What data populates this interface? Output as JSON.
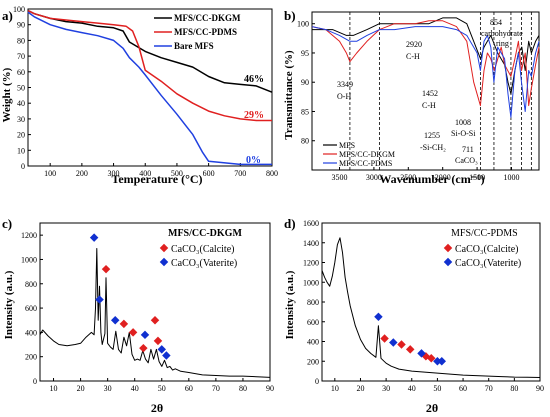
{
  "chart_data": [
    {
      "panel": "a)",
      "type": "line",
      "xlabel": "Temperature (°C)",
      "ylabel": "Weight (%)",
      "xlim": [
        30,
        800
      ],
      "ylim": [
        0,
        100
      ],
      "xticks": [
        100,
        200,
        300,
        400,
        500,
        600,
        700,
        800
      ],
      "yticks": [
        0,
        10,
        20,
        30,
        40,
        50,
        60,
        70,
        80,
        90,
        100
      ],
      "legend": [
        "MFS/CC-DKGM",
        "MFS/CC-PDMS",
        "Bare MFS"
      ],
      "annotations": [
        "46%",
        "29%",
        "0%"
      ],
      "series": [
        {
          "name": "MFS/CC-DKGM",
          "color": "#000000",
          "x": [
            30,
            50,
            100,
            150,
            200,
            250,
            300,
            330,
            350,
            400,
            450,
            500,
            550,
            600,
            650,
            700,
            750,
            800
          ],
          "y": [
            99,
            97,
            94,
            92,
            91,
            89,
            88,
            86,
            79,
            73,
            69,
            66,
            63,
            57,
            53,
            52,
            51,
            47
          ]
        },
        {
          "name": "MFS/CC-PDMS",
          "color": "#e02020",
          "x": [
            30,
            50,
            100,
            150,
            200,
            250,
            300,
            340,
            360,
            380,
            400,
            450,
            500,
            550,
            600,
            650,
            700,
            750,
            800
          ],
          "y": [
            99,
            97,
            94,
            93,
            92,
            91,
            90,
            89,
            86,
            76,
            61,
            54,
            46,
            40,
            35,
            32,
            30,
            29,
            29
          ]
        },
        {
          "name": "Bare MFS",
          "color": "#2040e0",
          "x": [
            30,
            50,
            100,
            150,
            200,
            250,
            300,
            330,
            350,
            380,
            400,
            450,
            500,
            550,
            580,
            600,
            700,
            800
          ],
          "y": [
            98,
            95,
            90,
            87,
            85,
            83,
            80,
            75,
            69,
            63,
            58,
            45,
            33,
            20,
            9,
            3,
            1,
            1
          ]
        }
      ]
    },
    {
      "panel": "b)",
      "type": "line",
      "xlabel": "Wavenumber (cm⁻¹)",
      "ylabel": "Transmittance (%)",
      "xlim": [
        3900,
        600
      ],
      "ylim": [
        75,
        102
      ],
      "xticks": [
        3500,
        3000,
        2500,
        2000,
        1500,
        1000
      ],
      "yticks": [
        80,
        85,
        90,
        95,
        100
      ],
      "legend": [
        "MFS",
        "MFS/CC-DKGM",
        "MFS/CC-PDMS"
      ],
      "annotations": [
        "3349 O-H",
        "2920 C-H",
        "1452 C-H",
        "1255 -Si-CH₃",
        "1008 Si-O-Si",
        "854 carbohydrate ring",
        "711 CaCO₃"
      ],
      "reference_lines": [
        3349,
        2920,
        1452,
        1255,
        1008,
        854,
        711
      ],
      "series": [
        {
          "name": "MFS",
          "color": "#000000",
          "x": [
            3900,
            3600,
            3400,
            3300,
            3100,
            2920,
            2700,
            2400,
            2200,
            2000,
            1800,
            1650,
            1550,
            1450,
            1400,
            1300,
            1200,
            1100,
            1050,
            1008,
            950,
            900,
            850,
            800,
            750,
            711,
            650,
            600
          ],
          "y": [
            99,
            99,
            98,
            98,
            99,
            100,
            100,
            100,
            100,
            101,
            101,
            100,
            97,
            94,
            96,
            98,
            95,
            93,
            90,
            88,
            92,
            95,
            96,
            92,
            97,
            95,
            97,
            98
          ]
        },
        {
          "name": "MFS/CC-DKGM",
          "color": "#e02020",
          "x": [
            3900,
            3700,
            3500,
            3400,
            3349,
            3250,
            3100,
            2920,
            2700,
            2400,
            2200,
            2000,
            1800,
            1650,
            1550,
            1452,
            1400,
            1350,
            1300,
            1250,
            1150,
            1100,
            1008,
            950,
            900,
            854,
            800,
            750,
            711,
            650,
            600
          ],
          "y": [
            99.5,
            99,
            97,
            95,
            93.5,
            95,
            97,
            99,
            100,
            100,
            100.5,
            100.5,
            99.5,
            97,
            90,
            86,
            92,
            95,
            94,
            92,
            96,
            93,
            91,
            94,
            97,
            92,
            95,
            86,
            89,
            93,
            96
          ]
        },
        {
          "name": "MFS/CC-PDMS",
          "color": "#2040e0",
          "x": [
            3900,
            3700,
            3500,
            3349,
            3250,
            3100,
            2920,
            2700,
            2400,
            2200,
            2000,
            1800,
            1650,
            1500,
            1452,
            1400,
            1350,
            1300,
            1255,
            1200,
            1100,
            1050,
            1008,
            950,
            900,
            854,
            800,
            750,
            711,
            650,
            600
          ],
          "y": [
            99.5,
            99,
            98,
            97,
            97,
            98,
            99,
            99,
            99.5,
            99.5,
            99.5,
            99,
            98,
            95,
            92,
            97,
            98,
            96,
            90,
            96,
            94,
            88,
            84,
            92,
            95,
            90,
            85,
            92,
            91,
            95,
            97
          ]
        }
      ]
    },
    {
      "panel": "c)",
      "type": "line",
      "title": "MFS/CC-DKGM",
      "xlabel": "2θ",
      "ylabel": "Intensity (a.u.)",
      "xlim": [
        5,
        90
      ],
      "ylim": [
        0,
        1300
      ],
      "xticks": [
        10,
        20,
        30,
        40,
        50,
        60,
        70,
        80,
        90
      ],
      "yticks": [
        0,
        200,
        400,
        600,
        800,
        1000,
        1200
      ],
      "legend": [
        "CaCO₃(Calcite)",
        "CaCO₃(Vaterite)"
      ],
      "color": "#000000",
      "x": [
        5,
        6,
        8,
        10,
        12,
        15,
        18,
        20,
        22,
        24,
        25,
        25.5,
        26,
        26.5,
        27,
        27.5,
        28,
        29,
        29.4,
        30,
        31,
        32,
        33,
        34,
        35,
        36,
        37,
        38,
        39,
        40,
        41,
        42,
        43,
        44,
        45,
        46,
        47,
        48,
        49,
        50,
        51,
        52,
        53,
        54,
        55,
        57,
        60,
        65,
        70,
        75,
        80,
        85,
        90
      ],
      "y": [
        380,
        420,
        370,
        330,
        300,
        290,
        300,
        310,
        360,
        400,
        380,
        600,
        1090,
        500,
        780,
        400,
        300,
        390,
        850,
        310,
        280,
        260,
        410,
        260,
        230,
        360,
        290,
        400,
        220,
        170,
        180,
        170,
        250,
        180,
        150,
        260,
        180,
        260,
        160,
        120,
        170,
        110,
        120,
        90,
        100,
        80,
        70,
        50,
        45,
        40,
        40,
        35,
        30
      ],
      "markers": {
        "calcite": {
          "color": "#e02020",
          "x": [
            29.4,
            36,
            39.4,
            43.2,
            47.5,
            48.6
          ],
          "y": [
            920,
            470,
            400,
            270,
            500,
            330
          ]
        },
        "vaterite": {
          "color": "#1030d0",
          "x": [
            25,
            27,
            32.8,
            43.8,
            50,
            51.7
          ],
          "y": [
            1180,
            670,
            500,
            380,
            260,
            210
          ]
        }
      }
    },
    {
      "panel": "d)",
      "type": "line",
      "title": "MFS/CC-PDMS",
      "xlabel": "2θ",
      "ylabel": "Intensity (a.u.)",
      "xlim": [
        5,
        90
      ],
      "ylim": [
        0,
        1600
      ],
      "xticks": [
        10,
        20,
        30,
        40,
        50,
        60,
        70,
        80,
        90
      ],
      "yticks": [
        0,
        200,
        400,
        600,
        800,
        1000,
        1200,
        1400,
        1600
      ],
      "legend": [
        "CaCO₃(Calcite)",
        "CaCO₃(Vaterite)"
      ],
      "color": "#000000",
      "x": [
        5,
        6,
        7,
        8,
        9,
        10,
        11,
        12,
        13,
        14,
        15,
        16,
        18,
        20,
        22,
        24,
        26,
        27,
        28,
        30,
        32,
        35,
        40,
        45,
        50,
        55,
        60,
        65,
        70,
        75,
        80,
        85,
        90
      ],
      "y": [
        1120,
        1050,
        1000,
        960,
        1060,
        1200,
        1380,
        1450,
        1300,
        1050,
        900,
        760,
        560,
        420,
        330,
        280,
        240,
        560,
        230,
        180,
        150,
        120,
        100,
        90,
        80,
        70,
        60,
        55,
        50,
        45,
        40,
        38,
        35
      ],
      "markers": {
        "calcite": {
          "color": "#e02020",
          "x": [
            29.4,
            36,
            39.4,
            45.5,
            47.6
          ],
          "y": [
            430,
            370,
            320,
            250,
            230
          ]
        },
        "vaterite": {
          "color": "#1030d0",
          "x": [
            27,
            32.8,
            43.8,
            50,
            51.7
          ],
          "y": [
            650,
            390,
            280,
            200,
            200
          ]
        }
      }
    }
  ]
}
